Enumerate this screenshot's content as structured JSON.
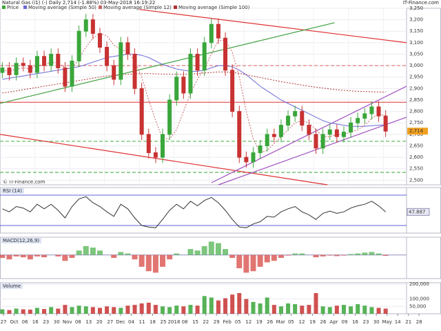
{
  "chart_data": [
    {
      "type": "candlestick",
      "title": "Natural Gas (i1) (-)   Daily   2,714 (-1.88%)   03-May-2018 16:19:22",
      "source": "IT-Finance.com",
      "copyright": "© IT-Finance.com",
      "price_label": "Price",
      "up_color": "#3aa63a",
      "down_color": "#c83232",
      "grid": true,
      "xlim": [
        0,
        175
      ],
      "ylim": [
        2480,
        3250
      ],
      "yticks": [
        {
          "value": 2500,
          "label": "2,500"
        },
        {
          "value": 2550,
          "label": "2,550"
        },
        {
          "value": 2600,
          "label": "2,600"
        },
        {
          "value": 2650,
          "label": "2,650"
        },
        {
          "value": 2700,
          "label": "2,700"
        },
        {
          "value": 2750,
          "label": "2,750"
        },
        {
          "value": 2800,
          "label": "2,800"
        },
        {
          "value": 2850,
          "label": "2,850"
        },
        {
          "value": 2900,
          "label": "2,900"
        },
        {
          "value": 2950,
          "label": "2,950"
        },
        {
          "value": 3000,
          "label": "3,000"
        },
        {
          "value": 3050,
          "label": "3,050"
        },
        {
          "value": 3100,
          "label": "3,100"
        },
        {
          "value": 3150,
          "label": "3,150"
        },
        {
          "value": 3200,
          "label": "3,200"
        },
        {
          "value": 3250,
          "label": "3,250"
        }
      ],
      "current_price": {
        "value": 2714,
        "label": "2,714"
      },
      "x": [
        1,
        4,
        7,
        10,
        13,
        16,
        19,
        22,
        25,
        28,
        31,
        34,
        37,
        40,
        43,
        46,
        49,
        52,
        55,
        58,
        61,
        64,
        67,
        70,
        73,
        76,
        79,
        82,
        85,
        88,
        91,
        94,
        97,
        100,
        103,
        106,
        109,
        112,
        115,
        118,
        121,
        124,
        127,
        130,
        133,
        136,
        139,
        142,
        145,
        148,
        151,
        154,
        157,
        160,
        163,
        166
      ],
      "open": [
        2970,
        2990,
        2960,
        3010,
        3000,
        2970,
        3040,
        3000,
        3050,
        2990,
        2910,
        3020,
        3150,
        3200,
        3140,
        3080,
        3000,
        2940,
        3100,
        3050,
        2900,
        2700,
        2620,
        2600,
        2700,
        2850,
        2950,
        2880,
        3050,
        2980,
        3100,
        3180,
        3120,
        2980,
        2800,
        2600,
        2580,
        2620,
        2650,
        2700,
        2690,
        2740,
        2780,
        2800,
        2740,
        2700,
        2640,
        2700,
        2720,
        2690,
        2710,
        2750,
        2770,
        2790,
        2820,
        2780
      ],
      "high": [
        3015,
        3015,
        3035,
        3035,
        3025,
        3065,
        3065,
        3075,
        3075,
        3015,
        3045,
        3175,
        3225,
        3225,
        3165,
        3105,
        3025,
        3125,
        3125,
        3075,
        2925,
        2725,
        2645,
        2725,
        2875,
        2975,
        2975,
        3075,
        3075,
        3125,
        3205,
        3205,
        3145,
        3005,
        2825,
        2625,
        2645,
        2675,
        2725,
        2725,
        2765,
        2805,
        2825,
        2825,
        2765,
        2725,
        2725,
        2745,
        2745,
        2735,
        2775,
        2795,
        2815,
        2845,
        2845,
        2805
      ],
      "low": [
        2945,
        2935,
        2935,
        2975,
        2945,
        2945,
        2975,
        2975,
        2965,
        2885,
        2885,
        2995,
        3125,
        3115,
        3055,
        2975,
        2915,
        2915,
        3025,
        2875,
        2675,
        2595,
        2575,
        2575,
        2675,
        2825,
        2855,
        2855,
        2955,
        2955,
        3075,
        3095,
        2955,
        2775,
        2575,
        2555,
        2555,
        2595,
        2625,
        2665,
        2665,
        2715,
        2755,
        2715,
        2675,
        2615,
        2615,
        2675,
        2665,
        2665,
        2685,
        2725,
        2745,
        2765,
        2755,
        2689
      ],
      "close": [
        2990,
        2960,
        3010,
        3000,
        2970,
        3040,
        3000,
        3050,
        2990,
        2910,
        3020,
        3150,
        3200,
        3140,
        3080,
        3000,
        2940,
        3100,
        3050,
        2900,
        2700,
        2620,
        2600,
        2700,
        2850,
        2950,
        2880,
        3050,
        2980,
        3100,
        3180,
        3120,
        2980,
        2800,
        2600,
        2580,
        2620,
        2650,
        2700,
        2690,
        2740,
        2780,
        2800,
        2740,
        2700,
        2640,
        2700,
        2720,
        2690,
        2710,
        2750,
        2770,
        2790,
        2820,
        2780,
        2714
      ],
      "series": [
        {
          "name": "Moving average (Simple 50)",
          "color": "#6a6ad8",
          "values": [
            2940,
            2945,
            2950,
            2955,
            2960,
            2965,
            2970,
            2975,
            2980,
            2985,
            2990,
            2995,
            3005,
            3015,
            3025,
            3035,
            3040,
            3045,
            3050,
            3050,
            3045,
            3035,
            3020,
            3005,
            2995,
            2985,
            2980,
            2975,
            2975,
            2980,
            2990,
            3000,
            3000,
            2995,
            2980,
            2960,
            2935,
            2910,
            2890,
            2870,
            2850,
            2835,
            2820,
            2805,
            2790,
            2775,
            2760,
            2750,
            2745,
            2740,
            2735,
            2735,
            2735,
            2738,
            2740,
            2742
          ]
        },
        {
          "name": "Moving average (Simple 12)",
          "color": "#c86464",
          "values": [
            2980,
            2975,
            2985,
            2990,
            2985,
            3000,
            3005,
            3015,
            3010,
            2990,
            2985,
            3030,
            3080,
            3120,
            3140,
            3130,
            3090,
            3070,
            3060,
            3020,
            2950,
            2850,
            2760,
            2680,
            2680,
            2720,
            2800,
            2880,
            2940,
            2990,
            3050,
            3110,
            3110,
            3060,
            2950,
            2800,
            2680,
            2620,
            2630,
            2660,
            2690,
            2720,
            2750,
            2760,
            2750,
            2720,
            2690,
            2690,
            2700,
            2700,
            2710,
            2720,
            2740,
            2770,
            2790,
            2780
          ]
        },
        {
          "name": "Moving average (Simple 100)",
          "color": "#b03030",
          "values": [
            2880,
            2885,
            2890,
            2895,
            2900,
            2905,
            2910,
            2915,
            2920,
            2925,
            2930,
            2935,
            2940,
            2945,
            2950,
            2955,
            2958,
            2960,
            2962,
            2964,
            2965,
            2965,
            2964,
            2963,
            2962,
            2962,
            2962,
            2963,
            2965,
            2968,
            2970,
            2972,
            2972,
            2970,
            2966,
            2960,
            2954,
            2948,
            2942,
            2936,
            2930,
            2925,
            2920,
            2915,
            2910,
            2906,
            2902,
            2898,
            2895,
            2892,
            2890,
            2888,
            2887,
            2886,
            2885,
            2884
          ]
        }
      ],
      "lines": [
        {
          "color": "#e03030",
          "points": [
            [
              60,
              3245
            ],
            [
              175,
              3100
            ]
          ]
        },
        {
          "color": "#e03030",
          "points": [
            [
              0,
              2700
            ],
            [
              141,
              2480
            ]
          ]
        },
        {
          "color": "#40a040",
          "points": [
            [
              0,
              2835
            ],
            [
              144,
              3187
            ]
          ]
        },
        {
          "color": "#a050c0",
          "points": [
            [
              91,
              2489
            ],
            [
              175,
              2910
            ]
          ]
        },
        {
          "color": "#a050c0",
          "points": [
            [
              94,
              2480
            ],
            [
              175,
              2775
            ]
          ]
        }
      ],
      "hlines": [
        {
          "value": 3000,
          "color": "#e06060",
          "dashed": true
        },
        {
          "value": 2840,
          "color": "#e03030",
          "dashed": false
        },
        {
          "value": 2670,
          "color": "#40b040",
          "dashed": true
        },
        {
          "value": 2534,
          "color": "#30a030",
          "dashed": true
        }
      ]
    },
    {
      "type": "line",
      "title": "RSI (14)",
      "color": "#333333",
      "xlim": [
        0,
        175
      ],
      "ylim": [
        20,
        80
      ],
      "hlines": [
        {
          "value": 70,
          "color": "#6060d0",
          "dashed": false
        },
        {
          "value": 30,
          "color": "#6060d0",
          "dashed": false
        }
      ],
      "x": [
        1,
        4,
        7,
        10,
        13,
        16,
        19,
        22,
        25,
        28,
        31,
        34,
        37,
        40,
        43,
        46,
        49,
        52,
        55,
        58,
        61,
        64,
        67,
        70,
        73,
        76,
        79,
        82,
        85,
        88,
        91,
        94,
        97,
        100,
        103,
        106,
        109,
        112,
        115,
        118,
        121,
        124,
        127,
        130,
        133,
        136,
        139,
        142,
        145,
        148,
        151,
        154,
        157,
        160,
        163,
        166
      ],
      "values": [
        52,
        48,
        55,
        53,
        48,
        58,
        52,
        58,
        50,
        40,
        55,
        65,
        68,
        60,
        55,
        48,
        42,
        58,
        52,
        40,
        30,
        28,
        27,
        38,
        50,
        58,
        52,
        62,
        56,
        63,
        67,
        60,
        50,
        38,
        28,
        27,
        32,
        35,
        42,
        41,
        48,
        52,
        55,
        48,
        44,
        38,
        46,
        49,
        46,
        48,
        53,
        56,
        58,
        62,
        56,
        47.887
      ]
    },
    {
      "type": "bar",
      "title": "MACD(12,26,9)",
      "up_color": "#5cb85c",
      "down_color": "#d9534f",
      "xlim": [
        0,
        175
      ],
      "ylim": [
        -80,
        60
      ],
      "x": [
        1,
        4,
        7,
        10,
        13,
        16,
        19,
        22,
        25,
        28,
        31,
        34,
        37,
        40,
        43,
        46,
        49,
        52,
        55,
        58,
        61,
        64,
        67,
        70,
        73,
        76,
        79,
        82,
        85,
        88,
        91,
        94,
        97,
        100,
        103,
        106,
        109,
        112,
        115,
        118,
        121,
        124,
        127,
        130,
        133,
        136,
        139,
        142,
        145,
        148,
        151,
        154,
        157,
        160,
        163,
        166
      ],
      "values": [
        -10,
        -15,
        -5,
        -8,
        -15,
        -5,
        -8,
        0,
        -5,
        -20,
        -10,
        15,
        30,
        25,
        15,
        0,
        -10,
        10,
        5,
        -15,
        -40,
        -55,
        -60,
        -40,
        -15,
        5,
        0,
        20,
        15,
        30,
        45,
        40,
        20,
        -10,
        -45,
        -60,
        -55,
        -40,
        -25,
        -20,
        -10,
        -2,
        5,
        5,
        0,
        -8,
        -5,
        -2,
        -4,
        -2,
        3,
        5,
        8,
        10,
        5,
        -3
      ]
    },
    {
      "type": "volume",
      "title": "Volume",
      "up_color": "#3aa63a",
      "down_color": "#c83232",
      "xlim": [
        0,
        175
      ],
      "ylim": [
        0,
        210000
      ],
      "yticks": [
        {
          "value": 50000,
          "label": "50,000"
        },
        {
          "value": 100000,
          "label": "100,000"
        },
        {
          "value": 200000,
          "label": "200,000"
        }
      ],
      "xticks": [
        {
          "value": 1.5,
          "label": "27"
        },
        {
          "value": 6.1,
          "label": "Oct"
        },
        {
          "value": 10.7,
          "label": "06"
        },
        {
          "value": 15.2,
          "label": "16"
        },
        {
          "value": 19.8,
          "label": "23"
        },
        {
          "value": 24.4,
          "label": "30"
        },
        {
          "value": 29,
          "label": "Nov"
        },
        {
          "value": 33.6,
          "label": "08"
        },
        {
          "value": 38.2,
          "label": "13"
        },
        {
          "value": 42.8,
          "label": "20"
        },
        {
          "value": 47.4,
          "label": "27"
        },
        {
          "value": 51.9,
          "label": "Dec"
        },
        {
          "value": 56.5,
          "label": "04"
        },
        {
          "value": 61.1,
          "label": "11"
        },
        {
          "value": 65.7,
          "label": "18"
        },
        {
          "value": 70.3,
          "label": "25"
        },
        {
          "value": 74.9,
          "label": "2018"
        },
        {
          "value": 79.5,
          "label": "08"
        },
        {
          "value": 84.1,
          "label": "15"
        },
        {
          "value": 88.6,
          "label": "22"
        },
        {
          "value": 93.2,
          "label": "29"
        },
        {
          "value": 97.8,
          "label": "Feb"
        },
        {
          "value": 102.4,
          "label": "05"
        },
        {
          "value": 107,
          "label": "12"
        },
        {
          "value": 111.6,
          "label": "19"
        },
        {
          "value": 116.2,
          "label": "26"
        },
        {
          "value": 120.8,
          "label": "Mar"
        },
        {
          "value": 125.3,
          "label": "05"
        },
        {
          "value": 129.9,
          "label": "12"
        },
        {
          "value": 134.5,
          "label": "19"
        },
        {
          "value": 139.1,
          "label": "26"
        },
        {
          "value": 143.7,
          "label": "Apr"
        },
        {
          "value": 148.3,
          "label": "09"
        },
        {
          "value": 152.9,
          "label": "16"
        },
        {
          "value": 157.5,
          "label": "23"
        },
        {
          "value": 162,
          "label": "30"
        },
        {
          "value": 166.6,
          "label": "May"
        },
        {
          "value": 171.2,
          "label": "14"
        },
        {
          "value": 175.8,
          "label": "21"
        },
        {
          "value": 180.4,
          "label": "28"
        }
      ],
      "x": [
        1,
        4,
        7,
        10,
        13,
        16,
        19,
        22,
        25,
        28,
        31,
        34,
        37,
        40,
        43,
        46,
        49,
        52,
        55,
        58,
        61,
        64,
        67,
        70,
        73,
        76,
        79,
        82,
        85,
        88,
        91,
        94,
        97,
        100,
        103,
        106,
        109,
        112,
        115,
        118,
        121,
        124,
        127,
        130,
        133,
        136,
        139,
        142,
        145,
        148,
        151,
        154,
        157,
        160,
        163,
        166
      ],
      "values": [
        30000,
        25000,
        35000,
        30000,
        28000,
        40000,
        32000,
        45000,
        35000,
        60000,
        45000,
        55000,
        50000,
        45000,
        40000,
        50000,
        45000,
        40000,
        55000,
        60000,
        70000,
        75000,
        60000,
        50000,
        45000,
        55000,
        50000,
        60000,
        55000,
        120000,
        110000,
        90000,
        105000,
        130000,
        140000,
        100000,
        80000,
        70000,
        110000,
        60000,
        50000,
        70000,
        65000,
        55000,
        60000,
        140000,
        50000,
        45000,
        55000,
        60000,
        50000,
        65000,
        55000,
        45000,
        40000,
        35000
      ]
    }
  ]
}
